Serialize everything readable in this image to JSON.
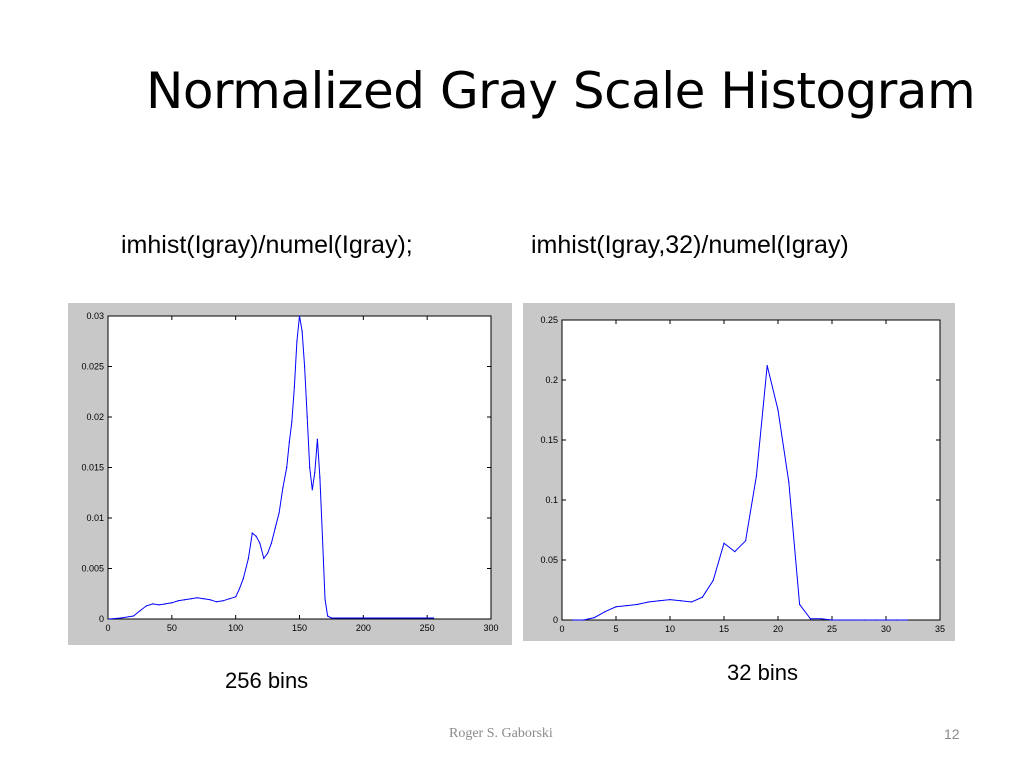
{
  "slide": {
    "title": "Normalized Gray Scale Histogram",
    "code_left": "imhist(Igray)/numel(Igray);",
    "code_right": "imhist(Igray,32)/numel(Igray)",
    "caption_left": "256 bins",
    "caption_right": "32 bins",
    "footer_author": "Roger S. Gaborski",
    "page_number": "12"
  },
  "colors": {
    "line": "#0000ff",
    "frame_bg": "#c8c8c8",
    "axes_bg": "#ffffff"
  },
  "chart_data": [
    {
      "type": "line",
      "xlim": [
        0,
        300
      ],
      "ylim": [
        0,
        0.03
      ],
      "xticks": [
        0,
        50,
        100,
        150,
        200,
        250,
        300
      ],
      "yticks": [
        0,
        0.005,
        0.01,
        0.015,
        0.02,
        0.025,
        0.03
      ],
      "xtick_labels": [
        "0",
        "50",
        "100",
        "150",
        "200",
        "250",
        "300"
      ],
      "ytick_labels": [
        "0",
        "0.005",
        "0.01",
        "0.015",
        "0.02",
        "0.025",
        "0.03"
      ],
      "grid": false,
      "series": [
        {
          "x": [
            1,
            10,
            20,
            25,
            30,
            35,
            40,
            45,
            50,
            55,
            60,
            65,
            70,
            75,
            80,
            85,
            90,
            95,
            100,
            103,
            106,
            110,
            113,
            116,
            119,
            122,
            125,
            128,
            131,
            134,
            137,
            140,
            142,
            144,
            146,
            148,
            150,
            152,
            154,
            156,
            158,
            160,
            162,
            164,
            166,
            168,
            170,
            172,
            175,
            180,
            200,
            220,
            240,
            255
          ],
          "y": [
            0,
            0.0001,
            0.0003,
            0.0008,
            0.0013,
            0.0015,
            0.0014,
            0.0015,
            0.0016,
            0.0018,
            0.0019,
            0.002,
            0.0021,
            0.002,
            0.0019,
            0.0017,
            0.0018,
            0.002,
            0.0022,
            0.003,
            0.004,
            0.006,
            0.0085,
            0.0082,
            0.0075,
            0.006,
            0.0065,
            0.0075,
            0.009,
            0.0105,
            0.013,
            0.015,
            0.0175,
            0.0195,
            0.023,
            0.0275,
            0.03,
            0.0285,
            0.025,
            0.02,
            0.015,
            0.0128,
            0.0145,
            0.0178,
            0.014,
            0.008,
            0.002,
            0.0003,
            0.0001,
            0.0001,
            0.0001,
            0.0001,
            0.0001,
            0.0001
          ]
        }
      ]
    },
    {
      "type": "line",
      "xlim": [
        0,
        35
      ],
      "ylim": [
        0,
        0.25
      ],
      "xticks": [
        0,
        5,
        10,
        15,
        20,
        25,
        30,
        35
      ],
      "yticks": [
        0,
        0.05,
        0.1,
        0.15,
        0.2,
        0.25
      ],
      "xtick_labels": [
        "0",
        "5",
        "10",
        "15",
        "20",
        "25",
        "30",
        "35"
      ],
      "ytick_labels": [
        "0",
        "0.05",
        "0.1",
        "0.15",
        "0.2",
        "0.25"
      ],
      "grid": false,
      "series": [
        {
          "x": [
            1,
            2,
            3,
            4,
            5,
            6,
            7,
            8,
            9,
            10,
            11,
            12,
            13,
            14,
            15,
            16,
            17,
            18,
            19,
            20,
            21,
            22,
            23,
            24,
            25,
            26,
            27,
            28,
            29,
            30,
            31,
            32
          ],
          "y": [
            0,
            0,
            0.002,
            0.007,
            0.011,
            0.012,
            0.013,
            0.015,
            0.016,
            0.017,
            0.016,
            0.015,
            0.019,
            0.033,
            0.064,
            0.057,
            0.066,
            0.12,
            0.212,
            0.175,
            0.115,
            0.013,
            0.001,
            0.001,
            0,
            0,
            0,
            0,
            0,
            0,
            0,
            0
          ]
        }
      ]
    }
  ]
}
